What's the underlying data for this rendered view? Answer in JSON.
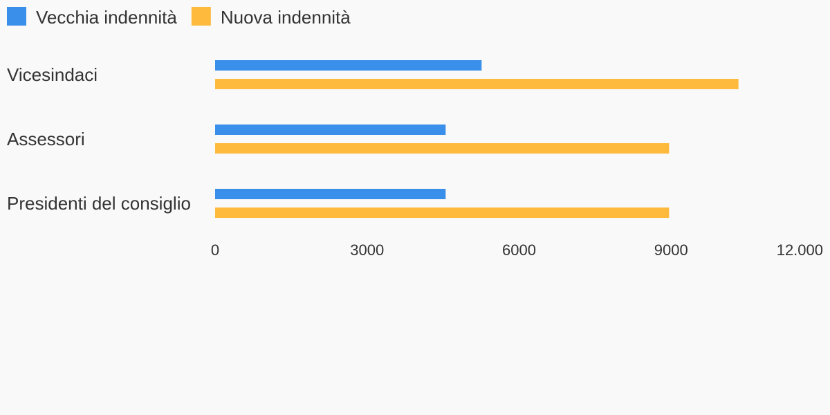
{
  "chart_data": {
    "type": "hbar",
    "categories": [
      "Vicesindaci",
      "Assessori",
      "Presidenti del consiglio"
    ],
    "series": [
      {
        "name": "Vecchia indennità",
        "color": "#3a8fea",
        "values": [
          5260,
          4550,
          4550
        ]
      },
      {
        "name": "Nuova indennità",
        "color": "#fdba3c",
        "values": [
          10330,
          8960,
          8960
        ]
      }
    ],
    "xlim": [
      0,
      12000
    ],
    "xticks": [
      0,
      3000,
      6000,
      9000,
      {
        "value": 12000,
        "label": "12.000"
      }
    ],
    "legend": "top-left",
    "grid": false
  }
}
